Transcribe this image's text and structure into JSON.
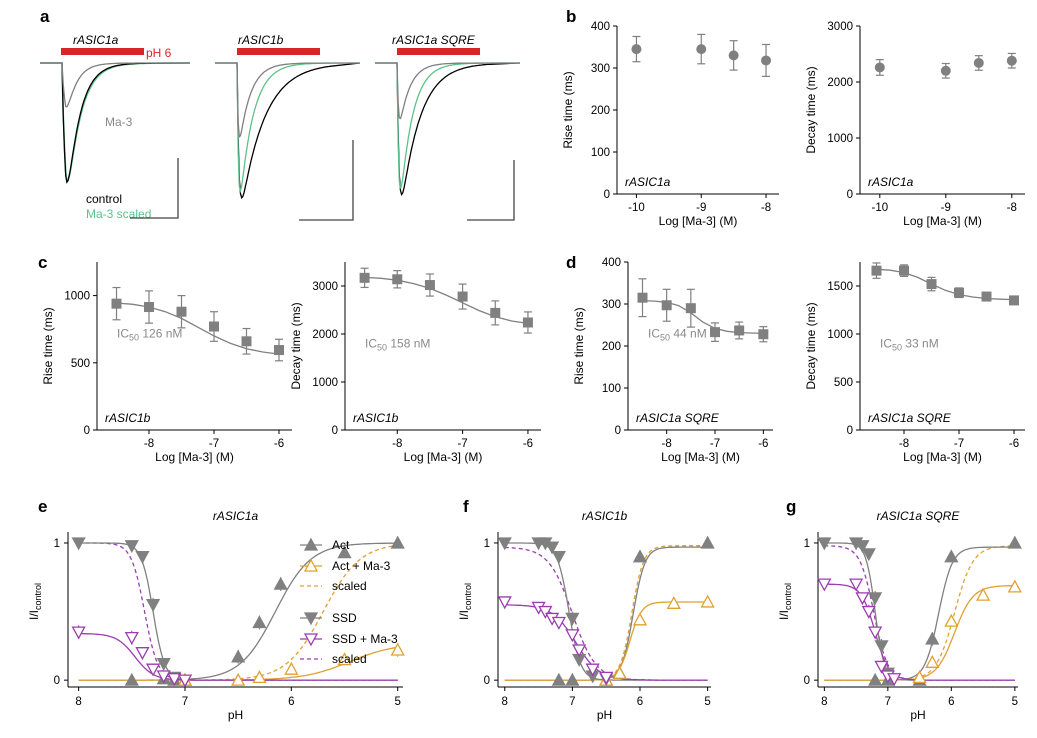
{
  "panel_labels": [
    "a",
    "b",
    "c",
    "d",
    "e",
    "f",
    "g"
  ],
  "colors": {
    "control": "#000000",
    "ma3": "#808080",
    "scaled_green": "#5cc28a",
    "red_bar": "#d62728",
    "grey_marker": "#808080",
    "act_open": "#e0a030",
    "ssd_open": "#9b3cb0"
  },
  "traces": {
    "a1_title": "rASIC1a",
    "a2_title": "rASIC1b",
    "a3_title": "rASIC1a SQRE",
    "ph_label": "pH 6",
    "ma3_label": "Ma-3",
    "control_label": "control",
    "scaled_label": "Ma-3 scaled"
  },
  "chart_data": [
    {
      "id": "b1",
      "type": "scatter",
      "ylabel": "Rise time (ms)",
      "xlabel": "Log [Ma-3] (M)",
      "annotation": "rASIC1a",
      "xlim": [
        -10.3,
        -7.8
      ],
      "ylim": [
        0,
        400
      ],
      "xticks": [
        -10,
        -9,
        -8
      ],
      "yticks": [
        0,
        100,
        200,
        300,
        400
      ],
      "x": [
        -10,
        -9,
        -8.5,
        -8
      ],
      "y": [
        345,
        345,
        330,
        318
      ],
      "err": [
        30,
        35,
        35,
        38
      ],
      "marker": "circle"
    },
    {
      "id": "b2",
      "type": "scatter",
      "ylabel": "Decay time (ms)",
      "xlabel": "Log [Ma-3] (M)",
      "annotation": "rASIC1a",
      "xlim": [
        -10.3,
        -7.8
      ],
      "ylim": [
        0,
        3000
      ],
      "xticks": [
        -10,
        -9,
        -8
      ],
      "yticks": [
        0,
        1000,
        2000,
        3000
      ],
      "x": [
        -10,
        -9,
        -8.5,
        -8
      ],
      "y": [
        2260,
        2200,
        2340,
        2380
      ],
      "err": [
        140,
        130,
        130,
        130
      ],
      "marker": "circle"
    },
    {
      "id": "c1",
      "type": "scatter",
      "ylabel": "Rise time (ms)",
      "xlabel": "Log [Ma-3] (M)",
      "annotation": "rASIC1b",
      "ic50_prefix": "IC",
      "ic50_sub": "50",
      "ic50_value": " 126 nM",
      "xlim": [
        -8.8,
        -5.8
      ],
      "ylim": [
        0,
        1250
      ],
      "xticks": [
        -8,
        -7,
        -6
      ],
      "yticks": [
        0,
        500,
        1000
      ],
      "x": [
        -8.5,
        -8,
        -7.5,
        -7,
        -6.5,
        -6
      ],
      "y": [
        940,
        915,
        880,
        770,
        660,
        595
      ],
      "err": [
        120,
        120,
        120,
        110,
        95,
        80
      ],
      "marker": "square",
      "fit_x": [
        -8.5,
        -8.25,
        -8,
        -7.75,
        -7.5,
        -7.25,
        -7,
        -6.75,
        -6.5,
        -6.25,
        -6
      ],
      "fit_y": [
        945,
        935,
        915,
        880,
        830,
        765,
        700,
        645,
        605,
        580,
        565
      ]
    },
    {
      "id": "c2",
      "type": "scatter",
      "ylabel": "Decay time (ms)",
      "xlabel": "Log [Ma-3] (M)",
      "annotation": "rASIC1b",
      "ic50_prefix": "IC",
      "ic50_sub": "50",
      "ic50_value": " 158 nM",
      "xlim": [
        -8.8,
        -5.8
      ],
      "ylim": [
        0,
        3500
      ],
      "xticks": [
        -8,
        -7,
        -6
      ],
      "yticks": [
        0,
        1000,
        2000,
        3000
      ],
      "x": [
        -8.5,
        -8,
        -7.5,
        -7,
        -6.5,
        -6
      ],
      "y": [
        3170,
        3140,
        3020,
        2780,
        2440,
        2240
      ],
      "err": [
        200,
        180,
        230,
        260,
        250,
        220
      ],
      "marker": "square",
      "fit_x": [
        -8.5,
        -8.25,
        -8,
        -7.75,
        -7.5,
        -7.25,
        -7,
        -6.75,
        -6.5,
        -6.25,
        -6
      ],
      "fit_y": [
        3180,
        3160,
        3120,
        3050,
        2950,
        2810,
        2650,
        2490,
        2360,
        2270,
        2220
      ]
    },
    {
      "id": "d1",
      "type": "scatter",
      "ylabel": "Rise time (ms)",
      "xlabel": "Log [Ma-3] (M)",
      "annotation": "rASIC1a SQRE",
      "ic50_prefix": "IC",
      "ic50_sub": "50",
      "ic50_value": " 44 nM",
      "xlim": [
        -8.8,
        -5.8
      ],
      "ylim": [
        0,
        400
      ],
      "xticks": [
        -8,
        -7,
        -6
      ],
      "yticks": [
        0,
        100,
        200,
        300,
        400
      ],
      "x": [
        -8.5,
        -8,
        -7.5,
        -7,
        -6.5,
        -6
      ],
      "y": [
        315,
        297,
        290,
        233,
        237,
        228
      ],
      "err": [
        45,
        38,
        45,
        22,
        20,
        18
      ],
      "marker": "square",
      "fit_x": [
        -8.5,
        -8.25,
        -8,
        -7.75,
        -7.5,
        -7.25,
        -7,
        -6.75,
        -6.5,
        -6.25,
        -6
      ],
      "fit_y": [
        308,
        307,
        304,
        296,
        279,
        257,
        242,
        235,
        232,
        231,
        230
      ]
    },
    {
      "id": "d2",
      "type": "scatter",
      "ylabel": "Decay time (ms)",
      "xlabel": "Log [Ma-3] (M)",
      "annotation": "rASIC1a SQRE",
      "ic50_prefix": "IC",
      "ic50_sub": "50",
      "ic50_value": " 33 nM",
      "xlim": [
        -8.8,
        -5.8
      ],
      "ylim": [
        0,
        1750
      ],
      "xticks": [
        -8,
        -7,
        -6
      ],
      "yticks": [
        0,
        500,
        1000,
        1500
      ],
      "x": [
        -8.5,
        -8,
        -7.5,
        -7,
        -6.5,
        -6
      ],
      "y": [
        1660,
        1660,
        1520,
        1430,
        1390,
        1350
      ],
      "err": [
        80,
        60,
        70,
        50,
        40,
        30
      ],
      "marker": "square",
      "fit_x": [
        -8.5,
        -8.25,
        -8,
        -7.75,
        -7.5,
        -7.25,
        -7,
        -6.75,
        -6.5,
        -6.25,
        -6
      ],
      "fit_y": [
        1675,
        1665,
        1640,
        1590,
        1520,
        1455,
        1410,
        1385,
        1370,
        1362,
        1358
      ]
    },
    {
      "id": "e",
      "type": "line",
      "title": "rASIC1a",
      "ylabel": "I/Icontrol",
      "ylabel_main": "I/I",
      "ylabel_sub": "control",
      "xlabel": "pH",
      "xlim": [
        8.1,
        4.95
      ],
      "ylim": [
        -0.05,
        1.08
      ],
      "xticks": [
        8,
        7,
        6,
        5
      ],
      "yticks": [
        0,
        1
      ],
      "series": [
        {
          "name": "Act",
          "kind": "act",
          "x": [
            7.5,
            7.2,
            7.1,
            7.0,
            6.5,
            6.3,
            6.1,
            5.5,
            5.0
          ],
          "y": [
            0,
            0.01,
            0.0,
            0.0,
            0.17,
            0.42,
            0.7,
            0.93,
            1.0
          ],
          "err": [
            0,
            0,
            0,
            0,
            0.05,
            0.05,
            0.05,
            0.03,
            0
          ]
        },
        {
          "name": "Act + Ma-3",
          "kind": "actma",
          "x": [
            7.0,
            6.5,
            6.3,
            6.0,
            5.5,
            5.0
          ],
          "y": [
            0,
            0.0,
            0.02,
            0.08,
            0.15,
            0.22
          ],
          "err": [
            0,
            0,
            0,
            0.03,
            0.04,
            0.05
          ]
        },
        {
          "name": "SSD",
          "kind": "ssd",
          "x": [
            8.0,
            7.5,
            7.4,
            7.3,
            7.2,
            7.1,
            7.0
          ],
          "y": [
            1.0,
            0.98,
            0.9,
            0.55,
            0.12,
            0.02,
            0.0
          ],
          "err": [
            0,
            0,
            0.03,
            0.05,
            0.03,
            0,
            0
          ]
        },
        {
          "name": "SSD + Ma-3",
          "kind": "ssdma",
          "x": [
            8.0,
            7.5,
            7.4,
            7.3,
            7.2,
            7.1,
            7.0
          ],
          "y": [
            0.35,
            0.31,
            0.2,
            0.08,
            0.03,
            0.01,
            0.0
          ],
          "err": [
            0.05,
            0.05,
            0.04,
            0.02,
            0,
            0,
            0
          ]
        }
      ],
      "fits": {
        "act": {
          "pH50": 6.15,
          "n": 2.6,
          "top": 1.0
        },
        "actma": {
          "pH50": 5.45,
          "n": 2.0,
          "top": 0.27
        },
        "actsc": {
          "pH50": 5.7,
          "n": 2.5,
          "top": 1.0
        },
        "ssd": {
          "pH50": 7.3,
          "n": 8,
          "top": 1.0
        },
        "ssdma": {
          "pH50": 7.47,
          "n": 5,
          "top": 0.34
        },
        "ssdsc": {
          "pH50": 7.38,
          "n": 7,
          "top": 1.0
        }
      },
      "legend": [
        "Act",
        "Act + Ma-3",
        "scaled",
        "SSD",
        "SSD + Ma-3",
        "scaled"
      ]
    },
    {
      "id": "f",
      "type": "line",
      "title": "rASIC1b",
      "ylabel": "I/Icontrol",
      "ylabel_main": "I/I",
      "ylabel_sub": "control",
      "xlabel": "pH",
      "xlim": [
        8.1,
        4.95
      ],
      "ylim": [
        -0.05,
        1.08
      ],
      "xticks": [
        8,
        7,
        6,
        5
      ],
      "yticks": [
        0,
        1
      ],
      "series": [
        {
          "name": "Act",
          "kind": "act",
          "x": [
            7.2,
            7.0,
            6.5,
            6.3,
            6.0,
            5.0
          ],
          "y": [
            0,
            0,
            0,
            0.05,
            0.9,
            1.0
          ],
          "err": [
            0,
            0,
            0,
            0,
            0.03,
            0
          ]
        },
        {
          "name": "Act + Ma-3",
          "kind": "actma",
          "x": [
            6.5,
            6.3,
            6.0,
            5.5,
            5.0
          ],
          "y": [
            0,
            0.05,
            0.44,
            0.56,
            0.57
          ],
          "err": [
            0,
            0,
            0.03,
            0.03,
            0.02
          ]
        },
        {
          "name": "SSD",
          "kind": "ssd",
          "x": [
            8.0,
            7.5,
            7.4,
            7.3,
            7.2,
            7.0,
            6.9,
            6.7,
            6.5
          ],
          "y": [
            1.0,
            1.0,
            1.0,
            0.97,
            0.9,
            0.45,
            0.15,
            0.03,
            0.01
          ],
          "err": [
            0,
            0,
            0,
            0.02,
            0.04,
            0.05,
            0.04,
            0,
            0
          ]
        },
        {
          "name": "SSD + Ma-3",
          "kind": "ssdma",
          "x": [
            8.0,
            7.5,
            7.4,
            7.3,
            7.2,
            7.0,
            6.9,
            6.7,
            6.5
          ],
          "y": [
            0.57,
            0.53,
            0.5,
            0.45,
            0.42,
            0.33,
            0.22,
            0.08,
            0.02
          ],
          "err": [
            0,
            0.04,
            0.04,
            0.04,
            0.04,
            0.04,
            0.03,
            0.02,
            0
          ]
        }
      ],
      "fits": {
        "act": {
          "pH50": 6.1,
          "n": 5,
          "top": 0.97
        },
        "actma": {
          "pH50": 6.15,
          "n": 5,
          "top": 0.57
        },
        "actsc": {
          "pH50": 6.12,
          "n": 5,
          "top": 0.98
        },
        "ssd": {
          "pH50": 7.05,
          "n": 5,
          "top": 1.0
        },
        "ssdma": {
          "pH50": 6.95,
          "n": 2.5,
          "top": 0.55
        },
        "ssdsc": {
          "pH50": 7.0,
          "n": 2.5,
          "top": 0.97
        }
      },
      "legend": []
    },
    {
      "id": "g",
      "type": "line",
      "title": "rASIC1a SQRE",
      "ylabel": "I/Icontrol",
      "ylabel_main": "I/I",
      "ylabel_sub": "control",
      "xlabel": "pH",
      "xlim": [
        8.1,
        4.95
      ],
      "ylim": [
        -0.05,
        1.08
      ],
      "xticks": [
        8,
        7,
        6,
        5
      ],
      "yticks": [
        0,
        1
      ],
      "series": [
        {
          "name": "Act",
          "kind": "act",
          "x": [
            7.2,
            7.0,
            6.5,
            6.3,
            6.0,
            5.0
          ],
          "y": [
            0,
            0,
            0,
            0.3,
            0.9,
            1.0
          ],
          "err": [
            0,
            0,
            0,
            0.05,
            0.04,
            0
          ]
        },
        {
          "name": "Act + Ma-3",
          "kind": "actma",
          "x": [
            6.5,
            6.3,
            6.0,
            5.5,
            5.0
          ],
          "y": [
            0.02,
            0.13,
            0.43,
            0.62,
            0.68
          ],
          "err": [
            0,
            0.03,
            0.04,
            0.04,
            0.03
          ]
        },
        {
          "name": "SSD",
          "kind": "ssd",
          "x": [
            8.0,
            7.5,
            7.4,
            7.3,
            7.2,
            7.1,
            7.0
          ],
          "y": [
            1.0,
            1.0,
            0.98,
            0.92,
            0.6,
            0.25,
            0.05
          ],
          "err": [
            0,
            0,
            0.02,
            0.04,
            0.05,
            0.05,
            0
          ]
        },
        {
          "name": "SSD + Ma-3",
          "kind": "ssdma",
          "x": [
            8.0,
            7.5,
            7.4,
            7.3,
            7.2,
            7.1,
            7.0,
            6.9
          ],
          "y": [
            0.7,
            0.7,
            0.6,
            0.5,
            0.35,
            0.1,
            0.03,
            0.01
          ],
          "err": [
            0.04,
            0.04,
            0.04,
            0.05,
            0.04,
            0.03,
            0,
            0
          ]
        }
      ],
      "fits": {
        "act": {
          "pH50": 6.2,
          "n": 4,
          "top": 0.97
        },
        "actma": {
          "pH50": 5.95,
          "n": 3,
          "top": 0.69
        },
        "actsc": {
          "pH50": 5.95,
          "n": 3,
          "top": 0.98
        },
        "ssd": {
          "pH50": 7.2,
          "n": 6,
          "top": 1.0
        },
        "ssdma": {
          "pH50": 7.2,
          "n": 4,
          "top": 0.7
        },
        "ssdsc": {
          "pH50": 7.22,
          "n": 4,
          "top": 0.98
        }
      },
      "legend": []
    }
  ]
}
